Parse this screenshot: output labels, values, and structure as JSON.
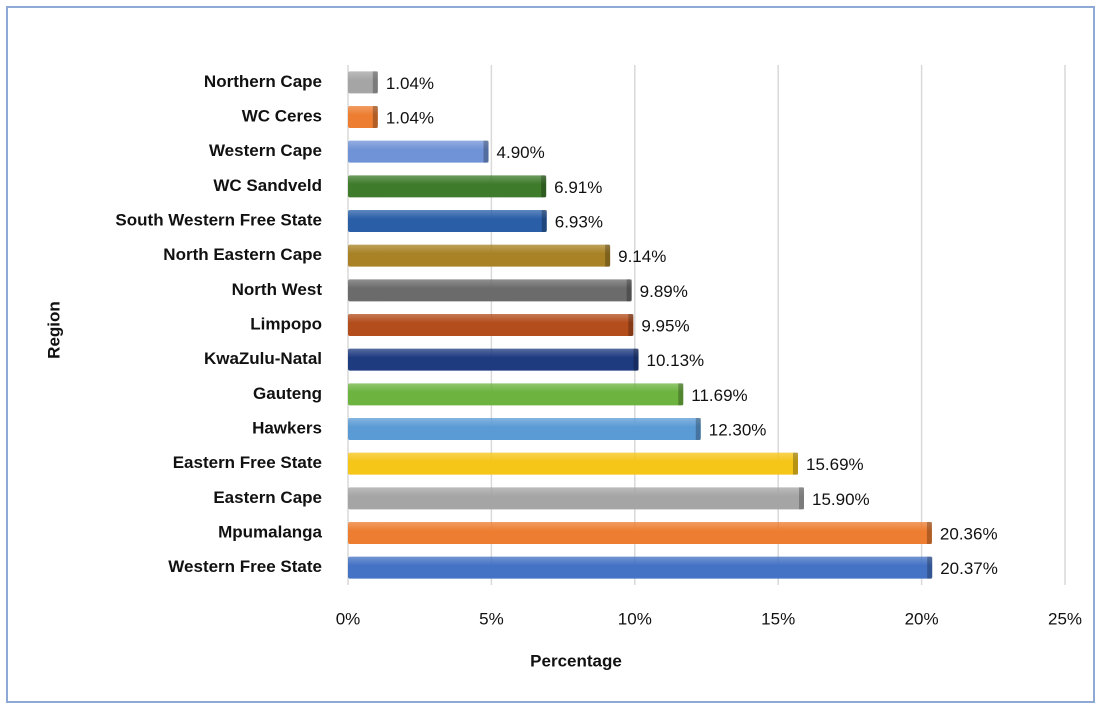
{
  "chart_data": {
    "type": "barh",
    "categories": [
      "Northern Cape",
      "WC Ceres",
      "Western Cape",
      "WC Sandveld",
      "South Western Free State",
      "North Eastern Cape",
      "North West",
      "Limpopo",
      "KwaZulu-Natal",
      "Gauteng",
      "Hawkers",
      "Eastern Free State",
      "Eastern Cape",
      "Mpumalanga",
      "Western Free State"
    ],
    "values": [
      1.04,
      1.04,
      4.9,
      6.91,
      6.93,
      9.14,
      9.89,
      9.95,
      10.13,
      11.69,
      12.3,
      15.69,
      15.9,
      20.36,
      20.37
    ],
    "value_labels": [
      "1.04%",
      "1.04%",
      "4.90%",
      "6.91%",
      "6.93%",
      "9.14%",
      "9.89%",
      "9.95%",
      "10.13%",
      "11.69%",
      "12.30%",
      "15.69%",
      "15.90%",
      "20.36%",
      "20.37%"
    ],
    "colors": [
      "#a5a5a5",
      "#ed7d31",
      "#7092d6",
      "#3e7b2b",
      "#2a5fa8",
      "#a88225",
      "#6b6b6b",
      "#b34d1c",
      "#1f3b80",
      "#6cb33f",
      "#5b9bd5",
      "#f5c518",
      "#a5a5a5",
      "#ed7d31",
      "#4472c4"
    ],
    "xlim": [
      0,
      25
    ],
    "xticks": [
      {
        "value": 0,
        "label": "0%"
      },
      {
        "value": 5,
        "label": "5%"
      },
      {
        "value": 10,
        "label": "10%"
      },
      {
        "value": 15,
        "label": "15%"
      },
      {
        "value": 20,
        "label": "20%"
      },
      {
        "value": 25,
        "label": "25%"
      }
    ],
    "xlabel": "Percentage",
    "ylabel": "Region",
    "grid": true
  }
}
